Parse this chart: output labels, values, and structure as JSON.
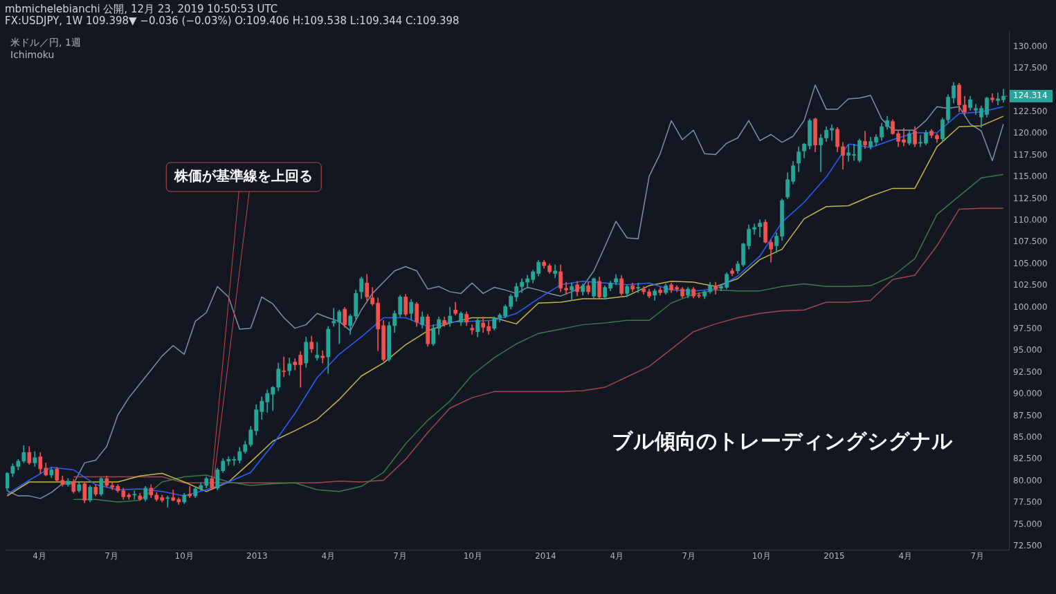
{
  "chart_data": {
    "type": "candlestick",
    "title": "mbmichelebianchi 公開, 12月 23, 2019 10:50:53 UTC",
    "subtitle": "FX:USDJPY, 1W 109.398▼ −0.036 (−0.03%) O:109.406 H:109.538 L:109.344 C:109.398",
    "annotations": [
      "米ドル／円, 1週",
      "Ichimoku",
      "ブル傾向のトレーディングシグナル",
      {
        "text": "株価が基準線を上回る",
        "x": "2012-11-05",
        "y": 80.3
      },
      {
        "text": "124.314",
        "x": "2015-08-03",
        "y": 124.314
      }
    ],
    "x": [
      "2012-02-20",
      "2012-02-27",
      "2012-03-05",
      "2012-03-12",
      "2012-03-19",
      "2012-03-26",
      "2012-04-02",
      "2012-04-09",
      "2012-04-16",
      "2012-04-23",
      "2012-04-30",
      "2012-05-07",
      "2012-05-14",
      "2012-05-21",
      "2012-05-28",
      "2012-06-04",
      "2012-06-11",
      "2012-06-18",
      "2012-06-25",
      "2012-07-02",
      "2012-07-09",
      "2012-07-16",
      "2012-07-23",
      "2012-07-30",
      "2012-08-06",
      "2012-08-13",
      "2012-08-20",
      "2012-08-27",
      "2012-09-03",
      "2012-09-10",
      "2012-09-17",
      "2012-09-24",
      "2012-10-01",
      "2012-10-08",
      "2012-10-15",
      "2012-10-22",
      "2012-10-29",
      "2012-11-05",
      "2012-11-12",
      "2012-11-19",
      "2012-11-26",
      "2012-12-03",
      "2012-12-10",
      "2012-12-17",
      "2012-12-24",
      "2012-12-31",
      "2013-01-07",
      "2013-01-14",
      "2013-01-21",
      "2013-01-28",
      "2013-02-04",
      "2013-02-11",
      "2013-02-18",
      "2013-02-25",
      "2013-03-04",
      "2013-03-11",
      "2013-03-18",
      "2013-03-25",
      "2013-04-01",
      "2013-04-08",
      "2013-04-15",
      "2013-04-22",
      "2013-04-29",
      "2013-05-06",
      "2013-05-13",
      "2013-05-20",
      "2013-05-27",
      "2013-06-03",
      "2013-06-10",
      "2013-06-17",
      "2013-06-24",
      "2013-07-01",
      "2013-07-08",
      "2013-07-15",
      "2013-07-22",
      "2013-07-29",
      "2013-08-05",
      "2013-08-12",
      "2013-08-19",
      "2013-08-26",
      "2013-09-02",
      "2013-09-09",
      "2013-09-16",
      "2013-09-23",
      "2013-09-30",
      "2013-10-07",
      "2013-10-14",
      "2013-10-21",
      "2013-10-28",
      "2013-11-04",
      "2013-11-11",
      "2013-11-18",
      "2013-11-25",
      "2013-12-02",
      "2013-12-09",
      "2013-12-16",
      "2013-12-23",
      "2013-12-30",
      "2014-01-06",
      "2014-01-13",
      "2014-01-20",
      "2014-01-27",
      "2014-02-03",
      "2014-02-10",
      "2014-02-17",
      "2014-02-24",
      "2014-03-03",
      "2014-03-10",
      "2014-03-17",
      "2014-03-24",
      "2014-03-31",
      "2014-04-07",
      "2014-04-14",
      "2014-04-21",
      "2014-04-28",
      "2014-05-05",
      "2014-05-12",
      "2014-05-19",
      "2014-05-26",
      "2014-06-02",
      "2014-06-09",
      "2014-06-16",
      "2014-06-23",
      "2014-06-30",
      "2014-07-07",
      "2014-07-14",
      "2014-07-21",
      "2014-07-28",
      "2014-08-04",
      "2014-08-11",
      "2014-08-18",
      "2014-08-25",
      "2014-09-01",
      "2014-09-08",
      "2014-09-15",
      "2014-09-22",
      "2014-09-29",
      "2014-10-06",
      "2014-10-13",
      "2014-10-20",
      "2014-10-27",
      "2014-11-03",
      "2014-11-10",
      "2014-11-17",
      "2014-11-24",
      "2014-12-01",
      "2014-12-08",
      "2014-12-15",
      "2014-12-22",
      "2014-12-29",
      "2015-01-05",
      "2015-01-12",
      "2015-01-19",
      "2015-01-26",
      "2015-02-02",
      "2015-02-09",
      "2015-02-16",
      "2015-02-23",
      "2015-03-02",
      "2015-03-09",
      "2015-03-16",
      "2015-03-23",
      "2015-03-30",
      "2015-04-06",
      "2015-04-13",
      "2015-04-20",
      "2015-04-27",
      "2015-05-04",
      "2015-05-11",
      "2015-05-18",
      "2015-05-25",
      "2015-06-01",
      "2015-06-08",
      "2015-06-15",
      "2015-06-22",
      "2015-06-29",
      "2015-07-06",
      "2015-07-13",
      "2015-07-20",
      "2015-07-27",
      "2015-08-03"
    ],
    "ohlc": [
      [
        79.2,
        81.0,
        78.9,
        80.9
      ],
      [
        80.9,
        82.0,
        80.5,
        81.7
      ],
      [
        81.7,
        82.5,
        81.3,
        82.3
      ],
      [
        82.3,
        84.1,
        82.1,
        83.3
      ],
      [
        83.3,
        84.0,
        81.9,
        82.1
      ],
      [
        82.1,
        83.4,
        81.7,
        82.7
      ],
      [
        82.8,
        83.3,
        80.9,
        81.4
      ],
      [
        81.5,
        82.1,
        80.6,
        80.7
      ],
      [
        80.7,
        81.5,
        80.4,
        81.3
      ],
      [
        81.4,
        81.6,
        79.9,
        80.1
      ],
      [
        80.1,
        80.6,
        79.4,
        79.6
      ],
      [
        79.6,
        80.3,
        79.4,
        80.0
      ],
      [
        79.9,
        80.2,
        78.6,
        78.8
      ],
      [
        78.9,
        79.9,
        78.7,
        79.6
      ],
      [
        79.7,
        79.9,
        77.5,
        77.8
      ],
      [
        77.8,
        79.5,
        77.6,
        79.3
      ],
      [
        79.3,
        79.6,
        78.3,
        78.5
      ],
      [
        78.5,
        80.4,
        78.3,
        80.3
      ],
      [
        80.3,
        80.6,
        79.3,
        79.5
      ],
      [
        79.5,
        79.8,
        79.0,
        79.3
      ],
      [
        79.4,
        79.6,
        78.7,
        78.9
      ],
      [
        78.9,
        79.2,
        77.9,
        78.2
      ],
      [
        78.4,
        78.6,
        77.9,
        78.2
      ],
      [
        78.4,
        78.9,
        77.9,
        78.5
      ],
      [
        78.3,
        78.6,
        77.8,
        77.9
      ],
      [
        77.9,
        79.4,
        77.7,
        79.2
      ],
      [
        79.2,
        79.6,
        78.1,
        78.4
      ],
      [
        78.4,
        78.7,
        77.7,
        77.9
      ],
      [
        78.1,
        78.4,
        77.6,
        77.8
      ],
      [
        78.0,
        78.3,
        77.0,
        78.1
      ],
      [
        78.1,
        79.0,
        77.7,
        77.8
      ],
      [
        77.9,
        78.1,
        77.3,
        77.6
      ],
      [
        77.6,
        78.6,
        77.4,
        78.4
      ],
      [
        78.5,
        79.4,
        78.1,
        78.3
      ],
      [
        78.3,
        79.4,
        78.1,
        79.1
      ],
      [
        79.1,
        79.8,
        78.9,
        79.5
      ],
      [
        79.5,
        80.5,
        79.2,
        80.3
      ],
      [
        80.3,
        80.6,
        79.0,
        79.2
      ],
      [
        79.2,
        81.5,
        79.0,
        81.3
      ],
      [
        81.2,
        82.6,
        81.0,
        82.3
      ],
      [
        82.3,
        82.8,
        81.8,
        82.5
      ],
      [
        82.4,
        82.8,
        81.8,
        82.5
      ],
      [
        82.4,
        83.9,
        82.1,
        83.4
      ],
      [
        83.4,
        84.6,
        83.2,
        84.2
      ],
      [
        84.2,
        86.3,
        84.0,
        85.9
      ],
      [
        85.8,
        88.8,
        85.3,
        88.2
      ],
      [
        88.0,
        89.7,
        87.1,
        89.2
      ],
      [
        89.1,
        90.5,
        87.9,
        90.1
      ],
      [
        90.0,
        90.9,
        88.1,
        90.8
      ],
      [
        90.8,
        93.6,
        90.4,
        92.9
      ],
      [
        92.7,
        94.3,
        92.0,
        92.6
      ],
      [
        92.7,
        94.2,
        92.2,
        93.5
      ],
      [
        93.7,
        94.1,
        92.8,
        93.4
      ],
      [
        94.5,
        94.9,
        90.8,
        93.4
      ],
      [
        93.6,
        96.6,
        93.1,
        96.0
      ],
      [
        96.0,
        96.7,
        94.8,
        95.2
      ],
      [
        94.2,
        96.0,
        93.9,
        94.5
      ],
      [
        94.4,
        95.0,
        93.6,
        94.2
      ],
      [
        94.3,
        97.8,
        92.4,
        97.5
      ],
      [
        98.2,
        99.9,
        97.8,
        98.4
      ],
      [
        98.3,
        99.7,
        95.8,
        99.5
      ],
      [
        99.8,
        100.0,
        97.7,
        98.0
      ],
      [
        97.9,
        99.2,
        96.9,
        99.0
      ],
      [
        99.0,
        102.0,
        98.6,
        101.6
      ],
      [
        101.8,
        103.5,
        101.0,
        103.3
      ],
      [
        102.8,
        103.8,
        100.8,
        101.2
      ],
      [
        101.1,
        102.3,
        100.2,
        100.4
      ],
      [
        100.5,
        101.1,
        95.0,
        97.5
      ],
      [
        97.9,
        98.5,
        93.8,
        94.0
      ],
      [
        94.0,
        98.3,
        93.8,
        97.9
      ],
      [
        97.9,
        99.6,
        97.1,
        99.3
      ],
      [
        99.2,
        101.4,
        98.9,
        101.2
      ],
      [
        101.2,
        101.5,
        99.0,
        99.2
      ],
      [
        99.3,
        100.9,
        98.6,
        100.6
      ],
      [
        100.4,
        100.6,
        97.8,
        98.3
      ],
      [
        98.0,
        99.5,
        97.6,
        98.9
      ],
      [
        98.9,
        99.2,
        95.5,
        95.8
      ],
      [
        95.8,
        98.0,
        95.6,
        97.6
      ],
      [
        97.6,
        98.9,
        96.9,
        98.6
      ],
      [
        98.5,
        98.9,
        97.8,
        98.0
      ],
      [
        98.3,
        100.0,
        97.8,
        99.0
      ],
      [
        99.7,
        100.6,
        99.1,
        99.3
      ],
      [
        98.3,
        99.5,
        97.9,
        99.3
      ],
      [
        99.2,
        99.5,
        97.9,
        98.3
      ],
      [
        97.6,
        98.0,
        96.9,
        97.4
      ],
      [
        97.2,
        98.8,
        96.6,
        98.5
      ],
      [
        98.2,
        98.9,
        97.1,
        97.7
      ],
      [
        97.8,
        98.4,
        96.9,
        97.3
      ],
      [
        97.6,
        98.9,
        97.4,
        98.8
      ],
      [
        98.8,
        99.3,
        98.3,
        99.1
      ],
      [
        99.0,
        100.3,
        98.8,
        100.1
      ],
      [
        100.1,
        101.5,
        99.8,
        101.3
      ],
      [
        101.2,
        102.8,
        100.7,
        102.4
      ],
      [
        102.4,
        103.3,
        101.7,
        102.9
      ],
      [
        102.9,
        103.7,
        102.2,
        103.3
      ],
      [
        103.2,
        104.3,
        102.8,
        104.1
      ],
      [
        103.9,
        105.4,
        103.6,
        105.2
      ],
      [
        105.2,
        105.4,
        104.5,
        104.8
      ],
      [
        104.8,
        105.0,
        103.9,
        104.1
      ],
      [
        103.9,
        104.9,
        103.4,
        104.2
      ],
      [
        104.1,
        104.9,
        101.8,
        102.2
      ],
      [
        102.2,
        102.9,
        101.5,
        102.0
      ],
      [
        102.0,
        102.8,
        100.8,
        102.4
      ],
      [
        102.6,
        103.0,
        101.3,
        101.8
      ],
      [
        101.8,
        102.7,
        101.4,
        102.5
      ],
      [
        102.5,
        102.9,
        101.5,
        101.8
      ],
      [
        101.3,
        103.4,
        101.1,
        103.3
      ],
      [
        103.0,
        103.5,
        101.1,
        101.2
      ],
      [
        101.2,
        102.5,
        100.9,
        102.3
      ],
      [
        102.2,
        103.0,
        101.9,
        102.8
      ],
      [
        102.9,
        103.8,
        102.6,
        103.3
      ],
      [
        103.3,
        103.7,
        101.4,
        101.6
      ],
      [
        101.6,
        102.6,
        101.2,
        102.4
      ],
      [
        102.5,
        102.8,
        101.8,
        102.1
      ],
      [
        102.2,
        102.8,
        101.7,
        102.3
      ],
      [
        102.1,
        102.4,
        101.5,
        101.8
      ],
      [
        101.8,
        102.1,
        101.1,
        101.3
      ],
      [
        101.4,
        102.1,
        100.8,
        101.9
      ],
      [
        102.0,
        102.3,
        101.4,
        101.7
      ],
      [
        101.7,
        102.7,
        101.5,
        102.5
      ],
      [
        102.6,
        102.8,
        101.7,
        102.0
      ],
      [
        102.3,
        102.5,
        101.8,
        102.1
      ],
      [
        102.1,
        102.3,
        101.1,
        101.3
      ],
      [
        101.4,
        102.3,
        101.1,
        102.1
      ],
      [
        102.1,
        102.3,
        101.1,
        101.3
      ],
      [
        101.4,
        101.7,
        101.1,
        101.3
      ],
      [
        101.3,
        101.9,
        101.0,
        101.8
      ],
      [
        101.8,
        102.9,
        101.6,
        102.5
      ],
      [
        102.5,
        102.9,
        101.5,
        102.1
      ],
      [
        102.2,
        102.6,
        101.9,
        102.4
      ],
      [
        102.3,
        104.0,
        102.1,
        103.8
      ],
      [
        104.2,
        104.5,
        103.6,
        103.9
      ],
      [
        104.2,
        105.3,
        103.9,
        105.0
      ],
      [
        104.9,
        107.4,
        104.7,
        107.3
      ],
      [
        107.1,
        109.5,
        106.7,
        109.0
      ],
      [
        109.0,
        109.6,
        108.4,
        109.2
      ],
      [
        109.3,
        110.1,
        108.1,
        109.7
      ],
      [
        109.8,
        110.1,
        107.4,
        107.5
      ],
      [
        107.5,
        107.8,
        105.2,
        106.7
      ],
      [
        107.1,
        108.6,
        106.3,
        108.2
      ],
      [
        108.2,
        112.5,
        107.7,
        112.3
      ],
      [
        112.7,
        115.5,
        112.5,
        114.7
      ],
      [
        114.5,
        116.8,
        114.2,
        116.3
      ],
      [
        116.6,
        118.5,
        115.6,
        117.9
      ],
      [
        118.0,
        118.9,
        117.2,
        118.8
      ],
      [
        118.6,
        121.7,
        118.2,
        121.5
      ],
      [
        121.7,
        121.8,
        117.9,
        118.7
      ],
      [
        118.7,
        119.9,
        115.6,
        119.5
      ],
      [
        119.5,
        120.8,
        119.1,
        120.4
      ],
      [
        120.4,
        121.0,
        119.2,
        120.6
      ],
      [
        120.5,
        120.7,
        117.9,
        118.5
      ],
      [
        118.5,
        119.0,
        115.9,
        117.5
      ],
      [
        117.5,
        118.7,
        116.8,
        117.8
      ],
      [
        117.5,
        118.8,
        116.9,
        117.6
      ],
      [
        116.9,
        119.4,
        116.7,
        119.2
      ],
      [
        119.1,
        120.3,
        118.3,
        118.7
      ],
      [
        118.5,
        119.6,
        118.2,
        119.1
      ],
      [
        119.0,
        119.9,
        118.6,
        119.6
      ],
      [
        119.6,
        121.2,
        119.2,
        120.8
      ],
      [
        120.8,
        122.0,
        120.5,
        121.5
      ],
      [
        121.4,
        121.6,
        119.9,
        120.0
      ],
      [
        120.0,
        120.4,
        118.5,
        119.1
      ],
      [
        119.3,
        120.6,
        118.6,
        119.0
      ],
      [
        118.9,
        120.3,
        118.7,
        120.0
      ],
      [
        120.3,
        120.8,
        118.5,
        118.8
      ],
      [
        118.9,
        119.8,
        118.5,
        119.0
      ],
      [
        118.9,
        120.4,
        118.7,
        120.1
      ],
      [
        120.3,
        120.5,
        119.5,
        119.8
      ],
      [
        119.8,
        120.0,
        119.0,
        119.4
      ],
      [
        119.4,
        121.8,
        119.1,
        121.6
      ],
      [
        121.6,
        124.5,
        121.3,
        124.2
      ],
      [
        124.1,
        125.9,
        123.5,
        125.5
      ],
      [
        125.6,
        125.8,
        122.5,
        123.3
      ],
      [
        123.3,
        124.3,
        122.2,
        122.5
      ],
      [
        123.0,
        124.3,
        122.7,
        123.9
      ],
      [
        122.7,
        123.4,
        122.2,
        122.9
      ],
      [
        121.9,
        123.2,
        120.7,
        122.9
      ],
      [
        122.2,
        124.2,
        121.9,
        124.1
      ],
      [
        124.1,
        124.6,
        123.6,
        123.9
      ],
      [
        123.8,
        124.7,
        123.3,
        124.0
      ],
      [
        123.9,
        125.1,
        123.6,
        124.314
      ]
    ],
    "colors": [
      "#26a69a",
      "#26a69a",
      "#26a69a",
      "#26a69a",
      "#ef5350",
      "#26a69a",
      "#ef5350",
      "#ef5350",
      "#26a69a",
      "#ef5350",
      "#ef5350",
      "#26a69a",
      "#ef5350",
      "#26a69a",
      "#ef5350",
      "#26a69a",
      "#ef5350",
      "#26a69a",
      "#ef5350",
      "#ef5350",
      "#ef5350",
      "#ef5350",
      "#ef5350",
      "#26a69a",
      "#ef5350",
      "#26a69a",
      "#ef5350",
      "#ef5350",
      "#ef5350",
      "#26a69a",
      "#ef5350",
      "#ef5350",
      "#26a69a",
      "#ef5350",
      "#26a69a",
      "#26a69a",
      "#26a69a",
      "#ef5350",
      "#26a69a",
      "#26a69a",
      "#26a69a",
      "#26a69a",
      "#26a69a",
      "#26a69a",
      "#26a69a",
      "#26a69a",
      "#26a69a",
      "#26a69a",
      "#26a69a",
      "#26a69a",
      "#ef5350",
      "#26a69a",
      "#ef5350",
      "#ef5350",
      "#26a69a",
      "#ef5350",
      "#26a69a",
      "#ef5350",
      "#26a69a",
      "#26a69a",
      "#26a69a",
      "#ef5350",
      "#26a69a",
      "#26a69a",
      "#26a69a",
      "#ef5350",
      "#ef5350",
      "#ef5350",
      "#ef5350",
      "#26a69a",
      "#26a69a",
      "#26a69a",
      "#ef5350",
      "#26a69a",
      "#ef5350",
      "#26a69a",
      "#ef5350",
      "#26a69a",
      "#26a69a",
      "#ef5350",
      "#26a69a",
      "#ef5350",
      "#26a69a",
      "#ef5350",
      "#ef5350",
      "#26a69a",
      "#ef5350",
      "#ef5350",
      "#26a69a",
      "#26a69a",
      "#26a69a",
      "#26a69a",
      "#26a69a",
      "#26a69a",
      "#26a69a",
      "#26a69a",
      "#26a69a",
      "#ef5350",
      "#ef5350",
      "#26a69a",
      "#ef5350",
      "#ef5350",
      "#26a69a",
      "#ef5350",
      "#26a69a",
      "#ef5350",
      "#26a69a",
      "#ef5350",
      "#26a69a",
      "#26a69a",
      "#26a69a",
      "#ef5350",
      "#26a69a",
      "#ef5350",
      "#26a69a",
      "#ef5350",
      "#ef5350",
      "#26a69a",
      "#ef5350",
      "#26a69a",
      "#ef5350",
      "#ef5350",
      "#ef5350",
      "#26a69a",
      "#ef5350",
      "#ef5350",
      "#26a69a",
      "#26a69a",
      "#ef5350",
      "#26a69a",
      "#26a69a",
      "#ef5350",
      "#26a69a",
      "#26a69a",
      "#26a69a",
      "#26a69a",
      "#26a69a",
      "#ef5350",
      "#ef5350",
      "#26a69a",
      "#26a69a",
      "#26a69a",
      "#26a69a",
      "#26a69a",
      "#26a69a",
      "#26a69a",
      "#ef5350",
      "#26a69a",
      "#26a69a",
      "#26a69a",
      "#ef5350",
      "#ef5350",
      "#26a69a",
      "#26a69a",
      "#26a69a",
      "#ef5350",
      "#26a69a",
      "#26a69a",
      "#26a69a",
      "#26a69a",
      "#ef5350",
      "#ef5350",
      "#ef5350",
      "#26a69a",
      "#ef5350",
      "#26a69a",
      "#26a69a",
      "#ef5350",
      "#ef5350",
      "#26a69a",
      "#26a69a",
      "#26a69a",
      "#ef5350",
      "#ef5350",
      "#26a69a",
      "#26a69a",
      "#26a69a",
      "#26a69a",
      "#ef5350",
      "#26a69a",
      "#26a69a"
    ],
    "series": [
      {
        "type": "line",
        "color": "#2962ff",
        "x": [
          "2012-02-20",
          "2012-03-19",
          "2012-04-16",
          "2012-05-14",
          "2012-06-11",
          "2012-07-09",
          "2012-08-06",
          "2012-09-03",
          "2012-10-01",
          "2012-10-29",
          "2012-11-26",
          "2012-12-24",
          "2013-01-21",
          "2013-02-18",
          "2013-03-18",
          "2013-04-15",
          "2013-05-13",
          "2013-06-10",
          "2013-07-08",
          "2013-08-05",
          "2013-09-02",
          "2013-09-30",
          "2013-10-28",
          "2013-11-25",
          "2013-12-23",
          "2014-01-20",
          "2014-02-17",
          "2014-03-17",
          "2014-04-14",
          "2014-05-12",
          "2014-06-09",
          "2014-07-07",
          "2014-08-04",
          "2014-09-01",
          "2014-09-29",
          "2014-10-27",
          "2014-11-24",
          "2014-12-22",
          "2015-01-19",
          "2015-02-16",
          "2015-03-16",
          "2015-04-13",
          "2015-05-11",
          "2015-06-08",
          "2015-07-06",
          "2015-08-03"
        ],
        "values": [
          78.5,
          80.1,
          81.6,
          81.3,
          79.6,
          79.0,
          79.1,
          78.8,
          78.3,
          79.0,
          79.9,
          81.0,
          84.2,
          87.8,
          91.9,
          94.6,
          96.6,
          98.8,
          98.8,
          97.8,
          98.3,
          98.4,
          98.5,
          99.3,
          101.0,
          102.6,
          103.0,
          102.8,
          102.6,
          102.8,
          102.0,
          101.9,
          102.1,
          103.6,
          105.9,
          109.8,
          112.1,
          115.0,
          118.8,
          118.4,
          119.3,
          120.1,
          120.1,
          122.3,
          122.5,
          123.1
        ]
      },
      {
        "type": "line",
        "color": "#c8b645",
        "x": [
          "2012-02-20",
          "2012-03-19",
          "2012-04-16",
          "2012-05-14",
          "2012-06-11",
          "2012-07-09",
          "2012-08-06",
          "2012-09-03",
          "2012-10-01",
          "2012-10-29",
          "2012-11-26",
          "2012-12-24",
          "2013-01-21",
          "2013-02-18",
          "2013-03-18",
          "2013-04-15",
          "2013-05-13",
          "2013-06-10",
          "2013-07-08",
          "2013-08-05",
          "2013-09-02",
          "2013-09-30",
          "2013-10-28",
          "2013-11-25",
          "2013-12-23",
          "2014-01-20",
          "2014-02-17",
          "2014-03-17",
          "2014-04-14",
          "2014-05-12",
          "2014-06-09",
          "2014-07-07",
          "2014-08-04",
          "2014-09-01",
          "2014-09-29",
          "2014-10-27",
          "2014-11-24",
          "2014-12-22",
          "2015-01-19",
          "2015-02-16",
          "2015-03-16",
          "2015-04-13",
          "2015-05-11",
          "2015-06-08",
          "2015-07-06",
          "2015-08-03"
        ],
        "values": [
          78.3,
          79.9,
          79.9,
          79.9,
          79.9,
          79.9,
          80.6,
          80.9,
          79.9,
          78.8,
          79.9,
          82.2,
          84.6,
          85.8,
          87.1,
          89.4,
          92.1,
          93.6,
          95.7,
          97.3,
          98.2,
          98.8,
          98.8,
          98.1,
          100.5,
          100.6,
          101.0,
          101.0,
          101.3,
          102.5,
          103.0,
          102.9,
          102.4,
          103.3,
          105.5,
          106.7,
          110.2,
          111.6,
          111.7,
          112.8,
          113.7,
          113.7,
          118.5,
          120.8,
          120.9,
          122.0
        ]
      },
      {
        "type": "line",
        "color": "#3b7a45",
        "x": [
          "2012-05-14",
          "2012-06-11",
          "2012-07-09",
          "2012-08-06",
          "2012-09-03",
          "2012-10-01",
          "2012-10-29",
          "2012-11-26",
          "2012-12-24",
          "2013-01-21",
          "2013-02-18",
          "2013-03-18",
          "2013-04-15",
          "2013-05-13",
          "2013-06-10",
          "2013-07-08",
          "2013-08-05",
          "2013-09-02",
          "2013-09-30",
          "2013-10-28",
          "2013-11-25",
          "2013-12-23",
          "2014-01-20",
          "2014-02-17",
          "2014-03-17",
          "2014-04-14",
          "2014-05-12",
          "2014-06-09",
          "2014-07-07",
          "2014-08-04",
          "2014-09-01",
          "2014-09-29",
          "2014-10-27",
          "2014-11-24",
          "2014-12-22",
          "2015-01-19",
          "2015-02-16",
          "2015-03-16",
          "2015-04-13",
          "2015-05-11",
          "2015-06-08",
          "2015-07-06",
          "2015-08-03"
        ],
        "values": [
          77.9,
          77.9,
          77.6,
          77.8,
          79.9,
          80.5,
          80.7,
          79.9,
          79.5,
          79.7,
          79.8,
          79.0,
          78.8,
          79.4,
          81.0,
          84.3,
          87.0,
          89.2,
          92.2,
          94.2,
          95.8,
          97.0,
          97.5,
          98.0,
          98.2,
          98.5,
          98.5,
          100.5,
          101.5,
          102.0,
          101.9,
          101.9,
          102.4,
          102.7,
          102.4,
          102.4,
          102.5,
          103.6,
          105.6,
          110.7,
          112.8,
          114.9,
          115.3
        ]
      },
      {
        "type": "line",
        "color": "#a3474a",
        "x": [
          "2012-05-14",
          "2012-06-11",
          "2012-07-09",
          "2012-08-06",
          "2012-09-03",
          "2012-10-01",
          "2012-10-29",
          "2012-11-26",
          "2012-12-24",
          "2013-01-21",
          "2013-02-18",
          "2013-03-18",
          "2013-04-15",
          "2013-05-13",
          "2013-06-10",
          "2013-07-08",
          "2013-08-05",
          "2013-09-02",
          "2013-09-30",
          "2013-10-28",
          "2013-11-25",
          "2013-12-23",
          "2014-01-20",
          "2014-02-17",
          "2014-03-17",
          "2014-04-14",
          "2014-05-12",
          "2014-06-09",
          "2014-07-07",
          "2014-08-04",
          "2014-09-01",
          "2014-09-29",
          "2014-10-27",
          "2014-11-24",
          "2014-12-22",
          "2015-01-19",
          "2015-02-16",
          "2015-03-16",
          "2015-04-13",
          "2015-05-11",
          "2015-06-08",
          "2015-07-06",
          "2015-08-03"
        ],
        "values": [
          80.5,
          80.5,
          80.5,
          80.5,
          80.5,
          79.8,
          79.8,
          79.8,
          79.8,
          79.8,
          79.8,
          79.8,
          80.0,
          79.9,
          80.1,
          82.5,
          85.6,
          88.4,
          89.6,
          90.3,
          90.3,
          90.3,
          90.3,
          90.4,
          90.8,
          92.0,
          93.2,
          95.2,
          97.2,
          98.1,
          98.8,
          99.3,
          99.6,
          99.7,
          100.6,
          100.6,
          100.8,
          103.2,
          103.7,
          107.1,
          111.3,
          111.4,
          111.4
        ]
      },
      {
        "type": "line",
        "color": "#7f8fad",
        "x": [
          "2012-02-20",
          "2012-03-05",
          "2012-03-19",
          "2012-04-02",
          "2012-04-16",
          "2012-04-30",
          "2012-05-14",
          "2012-05-28",
          "2012-06-11",
          "2012-06-25",
          "2012-07-09",
          "2012-07-23",
          "2012-08-06",
          "2012-08-20",
          "2012-09-03",
          "2012-09-17",
          "2012-10-01",
          "2012-10-15",
          "2012-10-29",
          "2012-11-12",
          "2012-11-26",
          "2012-12-10",
          "2012-12-24",
          "2013-01-07",
          "2013-01-21",
          "2013-02-04",
          "2013-02-18",
          "2013-03-04",
          "2013-03-18",
          "2013-04-01",
          "2013-04-15",
          "2013-04-29",
          "2013-05-13",
          "2013-05-27",
          "2013-06-10",
          "2013-06-24",
          "2013-07-08",
          "2013-07-22",
          "2013-08-05",
          "2013-08-19",
          "2013-09-02",
          "2013-09-16",
          "2013-09-30",
          "2013-10-14",
          "2013-10-28",
          "2013-11-11",
          "2013-11-25",
          "2013-12-09",
          "2013-12-23",
          "2014-01-06",
          "2014-01-20",
          "2014-02-03",
          "2014-02-17",
          "2014-03-03",
          "2014-03-17",
          "2014-03-31",
          "2014-04-14",
          "2014-04-28",
          "2014-05-12",
          "2014-05-26",
          "2014-06-09",
          "2014-06-23",
          "2014-07-07",
          "2014-07-21",
          "2014-08-04",
          "2014-08-18",
          "2014-09-01",
          "2014-09-15",
          "2014-09-29",
          "2014-10-13",
          "2014-10-27",
          "2014-11-10",
          "2014-11-24",
          "2014-12-08",
          "2014-12-22",
          "2015-01-05",
          "2015-01-19",
          "2015-02-02",
          "2015-02-16",
          "2015-03-02",
          "2015-03-16",
          "2015-03-30",
          "2015-04-13",
          "2015-04-27",
          "2015-05-11",
          "2015-05-25",
          "2015-06-08",
          "2015-06-22",
          "2015-07-06",
          "2015-07-20",
          "2015-08-03"
        ],
        "values": [
          78.9,
          78.3,
          78.3,
          78.0,
          78.7,
          79.7,
          79.7,
          82.1,
          82.4,
          84.0,
          87.6,
          89.6,
          91.2,
          92.8,
          94.4,
          95.6,
          94.6,
          98.4,
          99.4,
          102.4,
          101.2,
          97.5,
          97.6,
          101.2,
          100.4,
          98.8,
          97.6,
          98.0,
          99.3,
          98.8,
          98.4,
          97.3,
          99.7,
          101.6,
          102.9,
          104.2,
          104.7,
          104.2,
          102.1,
          102.4,
          101.8,
          101.6,
          102.8,
          101.6,
          102.3,
          102.0,
          101.6,
          102.3,
          102.0,
          101.6,
          101.3,
          101.8,
          102.4,
          104.2,
          107.0,
          109.9,
          108.0,
          107.9,
          115.1,
          117.7,
          121.5,
          119.3,
          120.4,
          117.7,
          117.6,
          118.9,
          119.5,
          121.5,
          119.2,
          119.9,
          119.0,
          119.7,
          121.5,
          125.6,
          122.8,
          122.8,
          124.0,
          124.1,
          124.4,
          121.7,
          120.4,
          120.4,
          120.4,
          121.5,
          123.1,
          122.9,
          123.1,
          121.1,
          120.3,
          116.9,
          121.1
        ]
      }
    ],
    "xlim": [
      "2012-02-18",
      "2015-08-10"
    ],
    "xticks": [
      {
        "value": "2012-04-01",
        "label": "4月"
      },
      {
        "value": "2012-07-01",
        "label": "7月"
      },
      {
        "value": "2012-10-01",
        "label": "10月"
      },
      {
        "value": "2013-01-01",
        "label": "2013"
      },
      {
        "value": "2013-04-01",
        "label": "4月"
      },
      {
        "value": "2013-07-01",
        "label": "7月"
      },
      {
        "value": "2013-10-01",
        "label": "10月"
      },
      {
        "value": "2014-01-01",
        "label": "2014"
      },
      {
        "value": "2014-04-01",
        "label": "4月"
      },
      {
        "value": "2014-07-01",
        "label": "7月"
      },
      {
        "value": "2014-10-01",
        "label": "10月"
      },
      {
        "value": "2015-01-01",
        "label": "2015"
      },
      {
        "value": "2015-04-01",
        "label": "4月"
      },
      {
        "value": "2015-07-01",
        "label": "7月"
      }
    ],
    "ylim": [
      72.1,
      131.8
    ],
    "yticks": [
      {
        "value": 72.5,
        "label": "72.500"
      },
      {
        "value": 75,
        "label": "75.000"
      },
      {
        "value": 77.5,
        "label": "77.500"
      },
      {
        "value": 80,
        "label": "80.000"
      },
      {
        "value": 82.5,
        "label": "82.500"
      },
      {
        "value": 85,
        "label": "85.000"
      },
      {
        "value": 87.5,
        "label": "87.500"
      },
      {
        "value": 90,
        "label": "90.000"
      },
      {
        "value": 92.5,
        "label": "92.500"
      },
      {
        "value": 95,
        "label": "95.000"
      },
      {
        "value": 97.5,
        "label": "97.500"
      },
      {
        "value": 100,
        "label": "100.000"
      },
      {
        "value": 102.5,
        "label": "102.500"
      },
      {
        "value": 105,
        "label": "105.000"
      },
      {
        "value": 107.5,
        "label": "107.500"
      },
      {
        "value": 110,
        "label": "110.000"
      },
      {
        "value": 112.5,
        "label": "112.500"
      },
      {
        "value": 115,
        "label": "115.000"
      },
      {
        "value": 117.5,
        "label": "117.500"
      },
      {
        "value": 120,
        "label": "120.000"
      },
      {
        "value": 122.5,
        "label": "122.500"
      },
      {
        "value": 127.5,
        "label": "127.500"
      },
      {
        "value": 130,
        "label": "130.000"
      }
    ]
  }
}
